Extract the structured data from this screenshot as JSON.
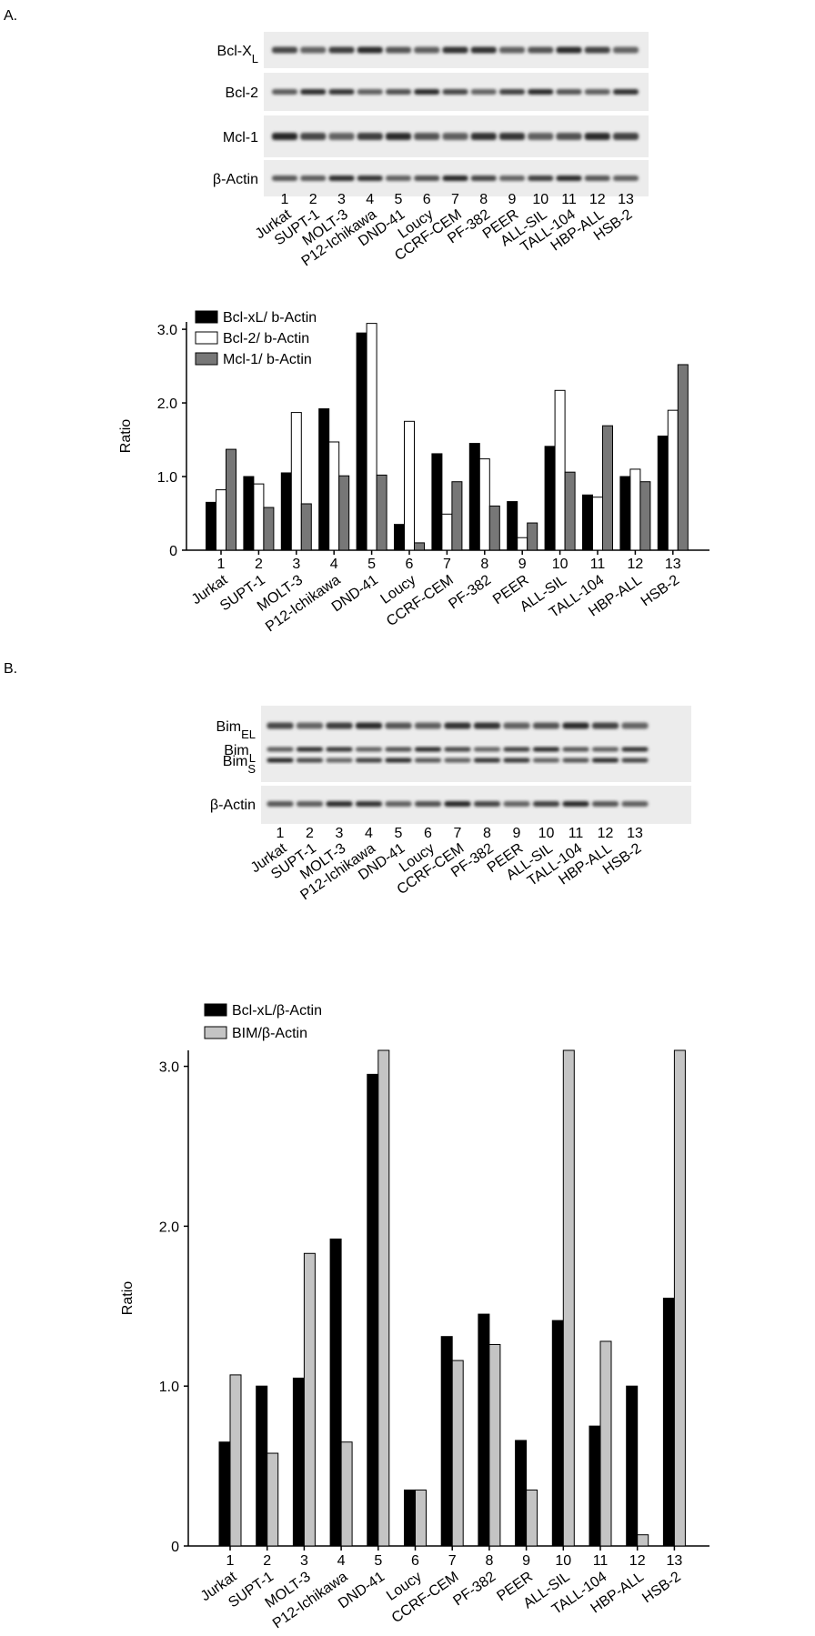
{
  "panels": [
    "A.",
    "B."
  ],
  "blot_a": {
    "rows": [
      {
        "label": "Bcl-X",
        "sub": "L"
      },
      {
        "label": "Bcl-2"
      },
      {
        "label": "Mcl-1"
      },
      {
        "label": "β-Actin"
      }
    ]
  },
  "blot_b": {
    "rows": [
      {
        "label": "Bim",
        "sub": "EL"
      },
      {
        "label": "Bim",
        "sub": "L"
      },
      {
        "label": "Bim",
        "sub": "S"
      },
      {
        "label": "β-Actin"
      }
    ]
  },
  "chart_data": [
    {
      "type": "bar",
      "ylabel": "Ratio",
      "lane_numbers": [
        "1",
        "2",
        "3",
        "4",
        "5",
        "6",
        "7",
        "8",
        "9",
        "10",
        "11",
        "12",
        "13"
      ],
      "categories": [
        "Jurkat",
        "SUPT-1",
        "MOLT-3",
        "P12-Ichikawa",
        "DND-41",
        "Loucy",
        "CCRF-CEM",
        "PF-382",
        "PEER",
        "ALL-SIL",
        "TALL-104",
        "HBP-ALL",
        "HSB-2"
      ],
      "ylim": [
        0,
        3.1
      ],
      "yticks": [
        0,
        {
          "value": 1,
          "label": "1.0"
        },
        {
          "value": 2,
          "label": "2.0"
        },
        {
          "value": 3,
          "label": "3.0"
        }
      ],
      "legend": "top-left",
      "series": [
        {
          "name": "Bcl-xL/ b-Actin",
          "color": "#000000",
          "values": [
            0.65,
            1.0,
            1.05,
            1.92,
            2.95,
            0.35,
            1.31,
            1.45,
            0.66,
            1.41,
            0.75,
            1.0,
            1.55
          ]
        },
        {
          "name": "Bcl-2/ b-Actin",
          "color": "#ffffff",
          "values": [
            0.82,
            0.9,
            1.87,
            1.47,
            3.08,
            1.75,
            0.49,
            1.24,
            0.17,
            2.17,
            0.72,
            1.1,
            1.9
          ]
        },
        {
          "name": "Mcl-1/ b-Actin",
          "color": "#777777",
          "values": [
            1.37,
            0.58,
            0.63,
            1.01,
            1.02,
            0.1,
            0.93,
            0.6,
            0.37,
            1.06,
            1.69,
            0.93,
            2.52
          ]
        }
      ]
    },
    {
      "type": "bar",
      "ylabel": "Ratio",
      "lane_numbers": [
        "1",
        "2",
        "3",
        "4",
        "5",
        "6",
        "7",
        "8",
        "9",
        "10",
        "11",
        "12",
        "13"
      ],
      "categories": [
        "Jurkat",
        "SUPT-1",
        "MOLT-3",
        "P12-Ichikawa",
        "DND-41",
        "Loucy",
        "CCRF-CEM",
        "PF-382",
        "PEER",
        "ALL-SIL",
        "TALL-104",
        "HBP-ALL",
        "HSB-2"
      ],
      "ylim": [
        0,
        3.1
      ],
      "yticks": [
        0,
        {
          "value": 1,
          "label": "1.0"
        },
        {
          "value": 2,
          "label": "2.0"
        },
        {
          "value": 3,
          "label": "3.0"
        }
      ],
      "legend": "top-left",
      "series": [
        {
          "name": "Bcl-xL/β-Actin",
          "color": "#000000",
          "values": [
            0.65,
            1.0,
            1.05,
            1.92,
            2.95,
            0.35,
            1.31,
            1.45,
            0.66,
            1.41,
            0.75,
            1.0,
            1.55
          ]
        },
        {
          "name": "BIM/β-Actin",
          "color": "#c4c4c4",
          "values": [
            1.07,
            0.58,
            1.83,
            0.65,
            3.1,
            0.35,
            1.16,
            1.26,
            0.35,
            3.1,
            1.28,
            0.07,
            3.1
          ]
        }
      ]
    }
  ]
}
